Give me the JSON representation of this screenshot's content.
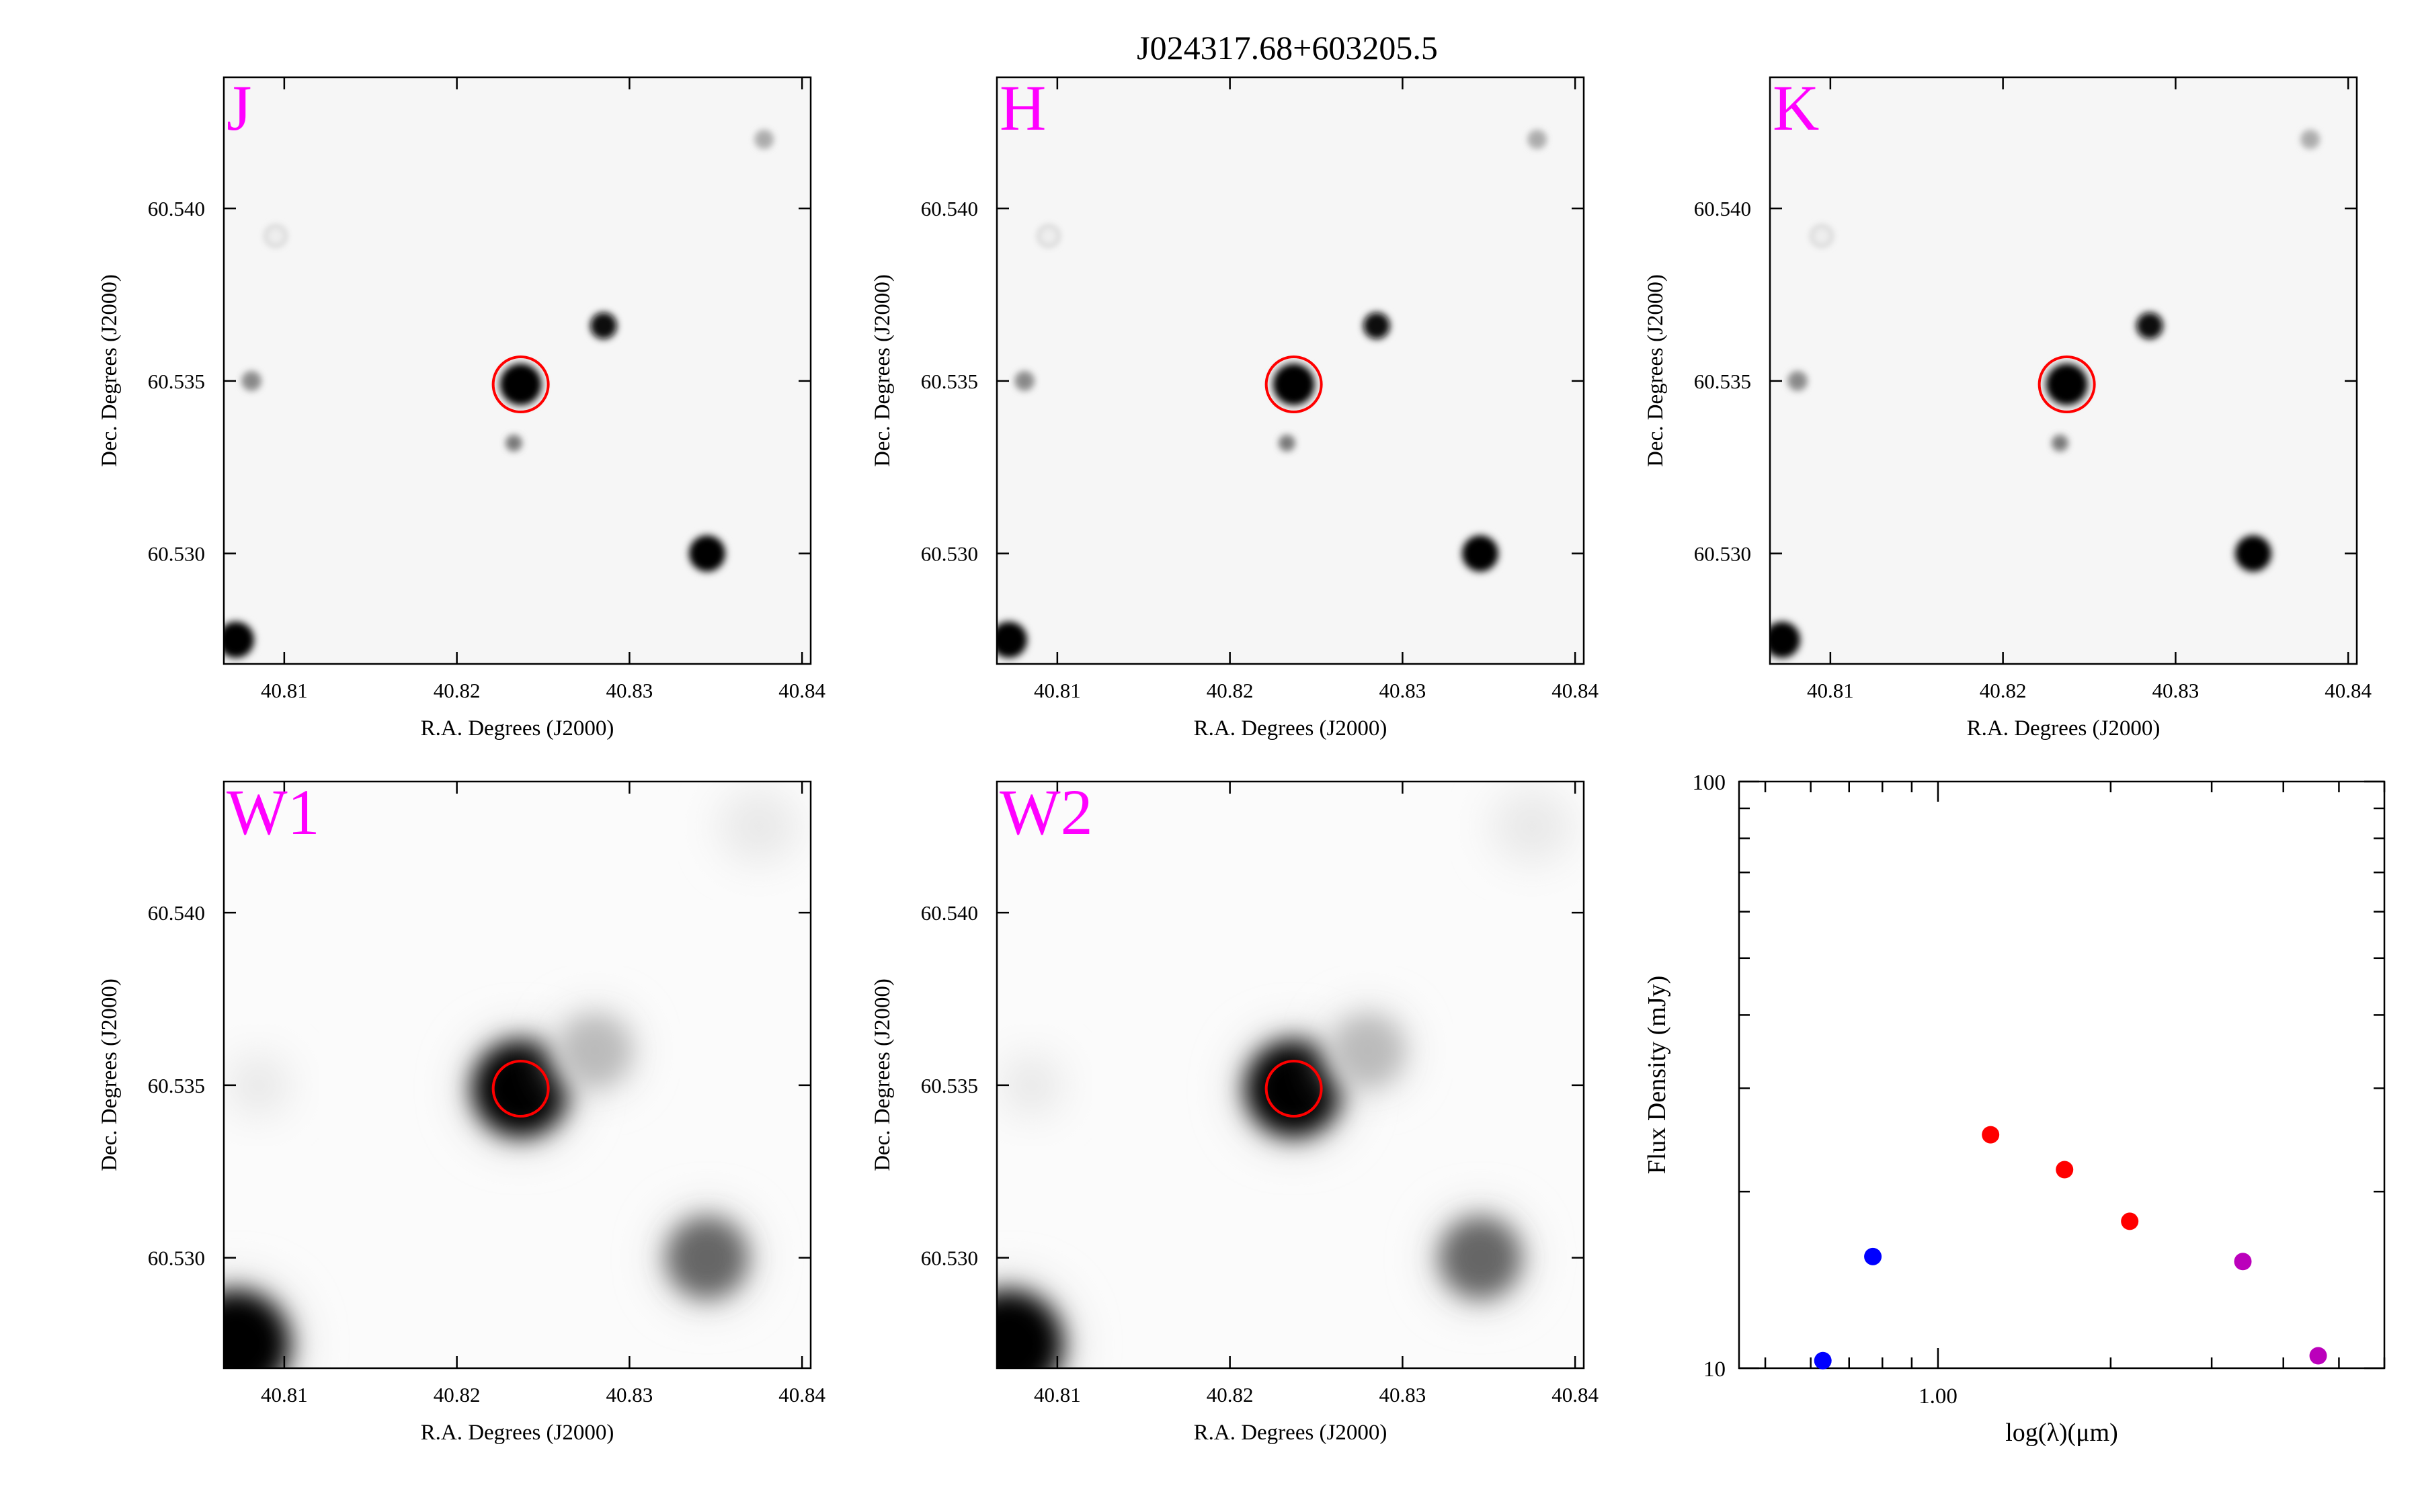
{
  "title": "J024317.68+603205.5",
  "image_panels": [
    {
      "band": "J",
      "xlabel": "R.A. Degrees (J2000)",
      "ylabel": "Dec. Degrees (J2000)"
    },
    {
      "band": "H",
      "xlabel": "R.A. Degrees (J2000)",
      "ylabel": "Dec. Degrees (J2000)"
    },
    {
      "band": "K",
      "xlabel": "R.A. Degrees (J2000)",
      "ylabel": "Dec. Degrees (J2000)"
    },
    {
      "band": "W1",
      "xlabel": "R.A. Degrees (J2000)",
      "ylabel": "Dec. Degrees (J2000)"
    },
    {
      "band": "W2",
      "xlabel": "R.A. Degrees (J2000)",
      "ylabel": "Dec. Degrees (J2000)"
    }
  ],
  "ra_ticks": [
    "40.81",
    "40.82",
    "40.83",
    "40.84"
  ],
  "dec_ticks": [
    "60.540",
    "60.535",
    "60.530"
  ],
  "target_marker_color": "#ff0000",
  "band_label_color": "#ff00ff",
  "chart_data": {
    "type": "scatter",
    "xlabel": "log(λ)(μm)",
    "ylabel": "Flux Density (mJy)",
    "x_tick_labels": [
      "1.00"
    ],
    "y_tick_labels": [
      "100",
      "10"
    ],
    "x_scale": "log",
    "y_scale": "log",
    "xlim": [
      0.45,
      6.0
    ],
    "ylim": [
      10,
      100
    ],
    "grid": false,
    "series": [
      {
        "color": "#0000ff",
        "points": [
          {
            "x": 0.63,
            "y": 10.3
          },
          {
            "x": 0.77,
            "y": 15.5
          }
        ]
      },
      {
        "color": "#ff0000",
        "points": [
          {
            "x": 1.235,
            "y": 25.0
          },
          {
            "x": 1.662,
            "y": 21.8
          },
          {
            "x": 2.159,
            "y": 17.8
          }
        ]
      },
      {
        "color": "#bb00bb",
        "points": [
          {
            "x": 3.4,
            "y": 15.2
          },
          {
            "x": 4.6,
            "y": 10.5
          }
        ]
      }
    ]
  }
}
